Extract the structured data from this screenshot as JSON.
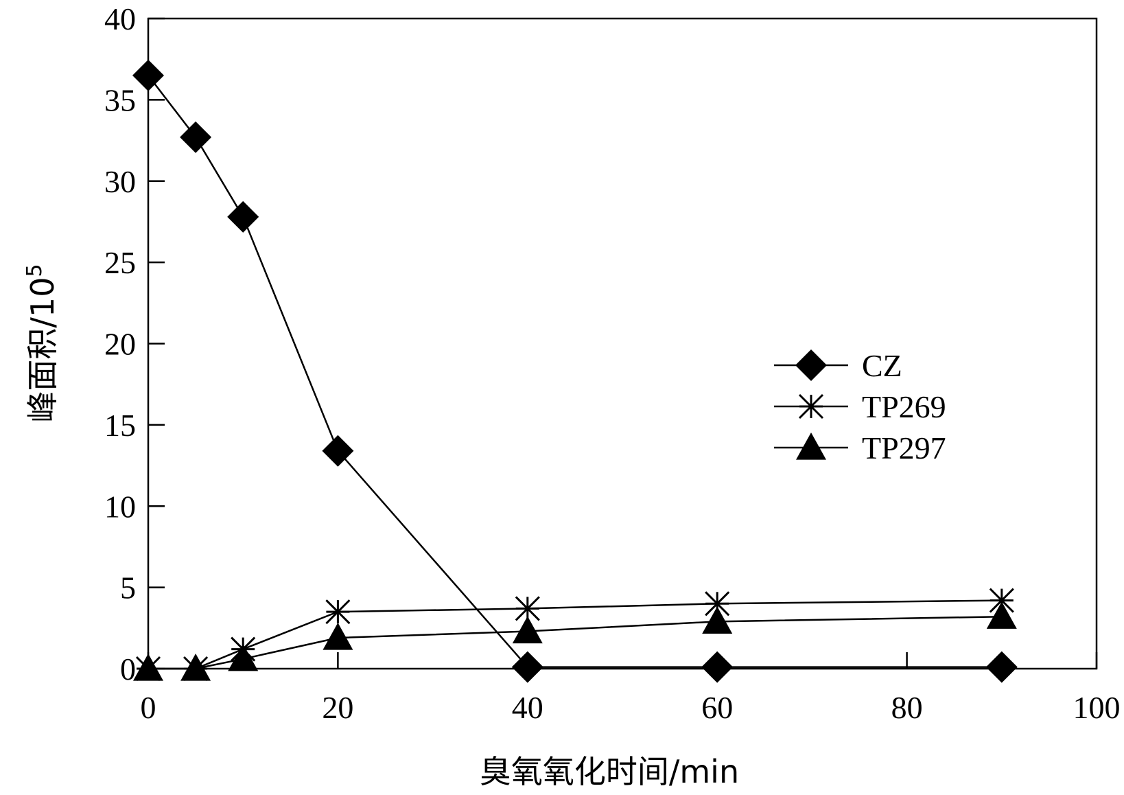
{
  "chart_data": {
    "type": "line",
    "title": "",
    "xlabel": "臭氧氧化时间/min",
    "ylabel_base": "峰面积/10",
    "ylabel_sup": "5",
    "xlim": [
      0,
      100
    ],
    "ylim": [
      0,
      40
    ],
    "xticks": [
      0,
      20,
      40,
      60,
      80,
      100
    ],
    "yticks": [
      0,
      5,
      10,
      15,
      20,
      25,
      30,
      35,
      40
    ],
    "grid": false,
    "legend_position": "right",
    "series": [
      {
        "name": "CZ",
        "marker": "diamond",
        "x": [
          0,
          5,
          10,
          20,
          40,
          60,
          90
        ],
        "y": [
          36.5,
          32.7,
          27.8,
          13.4,
          0.1,
          0.1,
          0.1
        ]
      },
      {
        "name": "TP269",
        "marker": "asterisk",
        "x": [
          0,
          5,
          10,
          20,
          40,
          60,
          90
        ],
        "y": [
          0.0,
          0.0,
          1.2,
          3.5,
          3.7,
          4.0,
          4.2
        ]
      },
      {
        "name": "TP297",
        "marker": "triangle",
        "x": [
          0,
          5,
          10,
          20,
          40,
          60,
          90
        ],
        "y": [
          0.0,
          0.0,
          0.6,
          1.9,
          2.3,
          2.9,
          3.2
        ]
      }
    ]
  },
  "colors": {
    "ink": "#000000",
    "background": "#ffffff"
  }
}
